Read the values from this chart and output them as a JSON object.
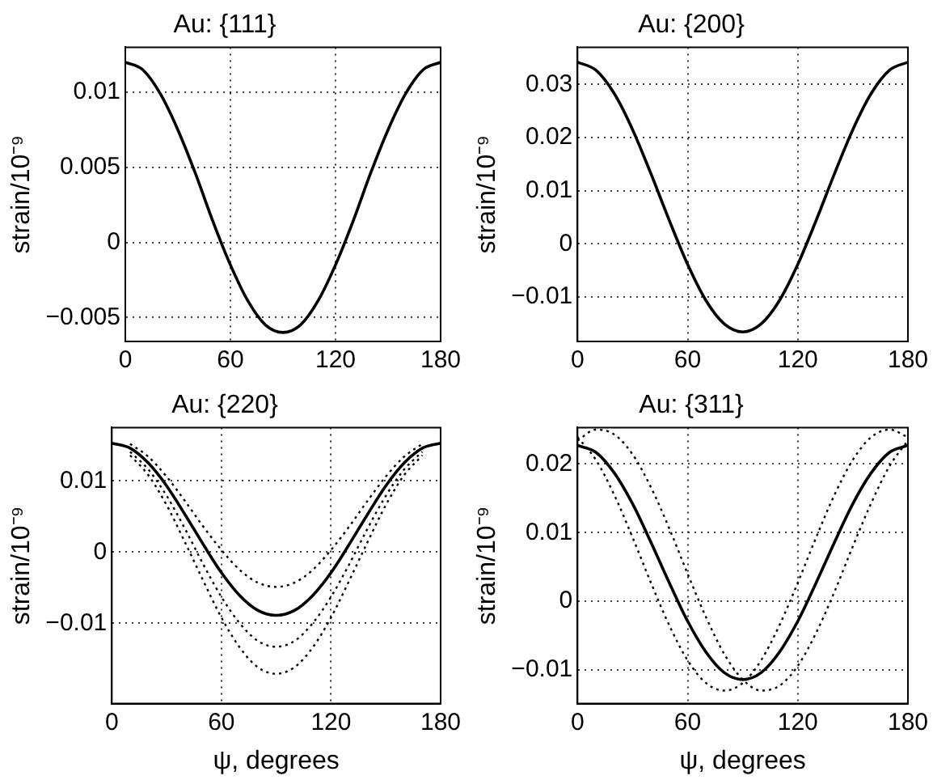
{
  "chart_data": [
    {
      "type": "line",
      "title": "Au: {111}",
      "ylabel": "strain/10⁻⁹",
      "x": [
        0,
        10,
        20,
        30,
        40,
        50,
        60,
        70,
        80,
        90,
        100,
        110,
        120,
        130,
        140,
        150,
        160,
        170,
        180
      ],
      "xlim": [
        0,
        180
      ],
      "xticks": [
        0,
        60,
        120,
        180
      ],
      "ylim": [
        -0.0066,
        0.013
      ],
      "yticks": [
        -0.005,
        0,
        0.005,
        0.01
      ],
      "grid": true,
      "line_style": "solid",
      "series": [
        {
          "color": "#000000",
          "values": [
            0.012,
            0.0115,
            0.0099,
            0.0075,
            0.0046,
            0.0014,
            -0.0015,
            -0.0039,
            -0.0055,
            -0.006,
            -0.0055,
            -0.0039,
            -0.0015,
            0.0014,
            0.0046,
            0.0075,
            0.0099,
            0.0115,
            0.012
          ]
        }
      ]
    },
    {
      "type": "line",
      "title": "Au: {200}",
      "ylabel": "strain/10⁻⁹",
      "x": [
        0,
        10,
        20,
        30,
        40,
        50,
        60,
        70,
        80,
        90,
        100,
        110,
        120,
        130,
        140,
        150,
        160,
        170,
        180
      ],
      "xlim": [
        0,
        180
      ],
      "xticks": [
        0,
        60,
        120,
        180
      ],
      "ylim": [
        -0.0184,
        0.037
      ],
      "yticks": [
        -0.01,
        0,
        0.01,
        0.02,
        0.03
      ],
      "grid": true,
      "line_style": "solid",
      "series": [
        {
          "color": "#000000",
          "values": [
            0.0342,
            0.0327,
            0.0283,
            0.0215,
            0.0132,
            0.0044,
            -0.0039,
            -0.0107,
            -0.0151,
            -0.0166,
            -0.0151,
            -0.0107,
            -0.0039,
            0.0044,
            0.0132,
            0.0215,
            0.0283,
            0.0327,
            0.0342
          ]
        }
      ]
    },
    {
      "type": "line",
      "title": "Au: {220}",
      "xlabel": "ψ, degrees",
      "ylabel": "strain/10⁻⁹",
      "x": [
        0,
        10,
        20,
        30,
        40,
        50,
        60,
        70,
        80,
        90,
        100,
        110,
        120,
        130,
        140,
        150,
        160,
        170,
        180
      ],
      "xlim": [
        0,
        180
      ],
      "xticks": [
        0,
        60,
        120,
        180
      ],
      "ylim": [
        -0.0213,
        0.0175
      ],
      "yticks": [
        -0.01,
        0,
        0.01
      ],
      "grid": true,
      "line_style": "solid",
      "series": [
        {
          "color": "#000000",
          "line_style": "dotted",
          "values": [
            null,
            0.0152,
            0.0134,
            0.0106,
            0.0072,
            0.0036,
            0.0003,
            -0.0025,
            -0.0043,
            -0.0049,
            -0.0043,
            -0.0025,
            0.0003,
            0.0036,
            0.0072,
            0.0106,
            0.0134,
            0.0152,
            null
          ]
        },
        {
          "color": "#000000",
          "line_style": "dotted",
          "values": [
            null,
            0.0141,
            0.0116,
            0.0079,
            0.0033,
            -0.0017,
            -0.0063,
            -0.01,
            -0.0125,
            -0.0133,
            -0.0125,
            -0.01,
            -0.0063,
            -0.0017,
            0.0033,
            0.0079,
            0.0116,
            0.0141,
            null
          ]
        },
        {
          "color": "#000000",
          "line_style": "dotted",
          "values": [
            null,
            0.0136,
            0.0108,
            0.0066,
            0.0014,
            -0.004,
            -0.0092,
            -0.0134,
            -0.0162,
            -0.0171,
            -0.0162,
            -0.0134,
            -0.0092,
            -0.004,
            0.0014,
            0.0066,
            0.0108,
            0.0136,
            null
          ]
        },
        {
          "color": "#000000",
          "values": [
            0.0153,
            0.0146,
            0.0125,
            0.0093,
            0.0053,
            0.0011,
            -0.0029,
            -0.0061,
            -0.0082,
            -0.0089,
            -0.0082,
            -0.0061,
            -0.0029,
            0.0011,
            0.0053,
            0.0093,
            0.0125,
            0.0146,
            0.0153
          ]
        }
      ]
    },
    {
      "type": "line",
      "title": "Au: {311}",
      "xlabel": "ψ, degrees",
      "ylabel": "strain/10⁻⁹",
      "x": [
        0,
        10,
        20,
        30,
        40,
        50,
        60,
        70,
        80,
        90,
        100,
        110,
        120,
        130,
        140,
        150,
        160,
        170,
        180
      ],
      "xlim": [
        0,
        180
      ],
      "xticks": [
        0,
        60,
        120,
        180
      ],
      "ylim": [
        -0.0149,
        0.0253
      ],
      "yticks": [
        -0.01,
        0,
        0.01,
        0.02
      ],
      "grid": true,
      "line_style": "solid",
      "series": [
        {
          "color": "#000000",
          "line_style": "dotted",
          "values": [
            0.0234,
            0.025,
            0.0243,
            0.0214,
            0.0166,
            0.0106,
            0.004,
            -0.0023,
            -0.0077,
            -0.0114,
            -0.013,
            -0.0123,
            -0.0094,
            -0.0046,
            0.0014,
            0.008,
            0.0143,
            0.0197,
            0.0234
          ]
        },
        {
          "color": "#000000",
          "line_style": "dotted",
          "values": [
            0.0239,
            0.0206,
            0.0155,
            0.0093,
            0.0027,
            -0.0035,
            -0.0086,
            -0.0119,
            -0.013,
            -0.0119,
            -0.0086,
            -0.0035,
            0.0027,
            0.0093,
            0.0155,
            0.0206,
            0.0239,
            0.025,
            0.0239
          ]
        },
        {
          "color": "#000000",
          "values": [
            0.0227,
            0.0217,
            0.0187,
            0.0142,
            0.0086,
            0.0027,
            -0.0029,
            -0.0074,
            -0.0104,
            -0.0114,
            -0.0104,
            -0.0074,
            -0.0029,
            0.0027,
            0.0086,
            0.0142,
            0.0187,
            0.0217,
            0.0227
          ]
        }
      ]
    }
  ]
}
